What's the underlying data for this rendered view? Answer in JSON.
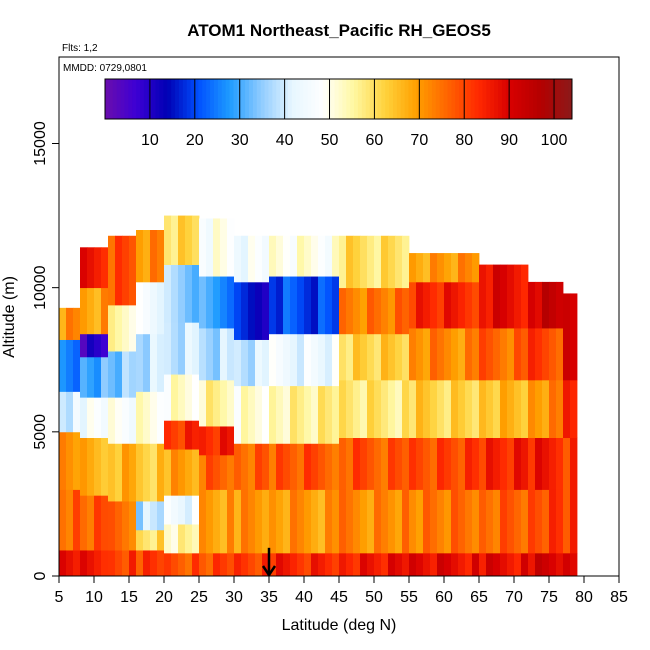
{
  "chart_data": {
    "type": "heatmap",
    "title": "ATOM1 Northeast_Pacific RH_GEOS5",
    "annotations": {
      "flights": "Flts: 1,2",
      "dates": "MMDD: 0729,0801"
    },
    "xlabel": "Latitude (deg N)",
    "ylabel": "Altitude (m)",
    "xlim": [
      5,
      85
    ],
    "ylim": [
      0,
      18000
    ],
    "xticks": [
      5,
      10,
      15,
      20,
      25,
      30,
      35,
      40,
      45,
      50,
      55,
      60,
      65,
      70,
      75,
      80,
      85
    ],
    "yticks": [
      0,
      5000,
      10000,
      15000
    ],
    "colorbar": {
      "ticks": [
        10,
        20,
        30,
        40,
        50,
        60,
        70,
        80,
        90,
        100
      ],
      "range": [
        0,
        104
      ],
      "colors": [
        "#6a0dad",
        "#3d00d4",
        "#0000b4",
        "#0050ff",
        "#1e9bff",
        "#8ecbff",
        "#e6f6ff",
        "#ffffff",
        "#fff7a0",
        "#ffd23c",
        "#ffa000",
        "#ff6400",
        "#ff2800",
        "#d80000",
        "#b40000",
        "#8b1a1a"
      ]
    },
    "marker": {
      "x": 35,
      "y_top": 700,
      "y_bottom": 0
    },
    "heat_columns": [
      {
        "x": [
          5,
          8
        ],
        "top": 9300,
        "bands": [
          [
            0,
            900,
            85
          ],
          [
            900,
            3000,
            76
          ],
          [
            3000,
            5000,
            70
          ],
          [
            5000,
            6400,
            42
          ],
          [
            6400,
            8200,
            25
          ],
          [
            8200,
            9300,
            70
          ]
        ]
      },
      {
        "x": [
          8,
          12
        ],
        "top": 11400,
        "bands": [
          [
            0,
            900,
            86
          ],
          [
            900,
            2800,
            78
          ],
          [
            2800,
            4800,
            68
          ],
          [
            4800,
            6200,
            45
          ],
          [
            6200,
            7600,
            30
          ],
          [
            7600,
            8400,
            8
          ],
          [
            8400,
            10000,
            70
          ],
          [
            10000,
            11400,
            85
          ]
        ]
      },
      {
        "x": [
          12,
          16
        ],
        "top": 11800,
        "bands": [
          [
            0,
            900,
            82
          ],
          [
            900,
            2600,
            74
          ],
          [
            2600,
            4600,
            66
          ],
          [
            4600,
            6200,
            48
          ],
          [
            6200,
            7800,
            35
          ],
          [
            7800,
            9400,
            55
          ],
          [
            9400,
            11800,
            78
          ]
        ]
      },
      {
        "x": [
          16,
          20
        ],
        "top": 12000,
        "bands": [
          [
            0,
            900,
            80
          ],
          [
            900,
            1600,
            60
          ],
          [
            1600,
            2600,
            38
          ],
          [
            2600,
            4600,
            64
          ],
          [
            4600,
            6400,
            50
          ],
          [
            6400,
            8400,
            38
          ],
          [
            8400,
            10200,
            45
          ],
          [
            10200,
            12000,
            72
          ]
        ]
      },
      {
        "x": [
          20,
          25
        ],
        "top": 12500,
        "bands": [
          [
            0,
            800,
            78
          ],
          [
            800,
            1800,
            55
          ],
          [
            1800,
            2800,
            45
          ],
          [
            2800,
            4400,
            68
          ],
          [
            4400,
            5400,
            82
          ],
          [
            5400,
            7000,
            52
          ],
          [
            7000,
            8800,
            40
          ],
          [
            8800,
            10800,
            35
          ],
          [
            10800,
            12500,
            60
          ]
        ]
      },
      {
        "x": [
          25,
          30
        ],
        "top": 12400,
        "bands": [
          [
            0,
            800,
            80
          ],
          [
            800,
            3000,
            70
          ],
          [
            3000,
            4200,
            76
          ],
          [
            4200,
            5200,
            84
          ],
          [
            5200,
            6800,
            56
          ],
          [
            6800,
            8600,
            38
          ],
          [
            8600,
            10400,
            28
          ],
          [
            10400,
            12400,
            48
          ]
        ]
      },
      {
        "x": [
          30,
          35
        ],
        "top": 11800,
        "bands": [
          [
            0,
            800,
            82
          ],
          [
            800,
            3000,
            70
          ],
          [
            3000,
            4600,
            76
          ],
          [
            4600,
            6600,
            52
          ],
          [
            6600,
            8200,
            40
          ],
          [
            8200,
            10200,
            15
          ],
          [
            10200,
            11800,
            45
          ]
        ]
      },
      {
        "x": [
          35,
          45
        ],
        "top": 11800,
        "bands": [
          [
            0,
            800,
            84
          ],
          [
            800,
            3000,
            70
          ],
          [
            3000,
            4600,
            78
          ],
          [
            4600,
            6600,
            56
          ],
          [
            6600,
            8400,
            44
          ],
          [
            8400,
            10400,
            20
          ],
          [
            10400,
            11800,
            50
          ]
        ]
      },
      {
        "x": [
          45,
          55
        ],
        "top": 11800,
        "bands": [
          [
            0,
            800,
            86
          ],
          [
            800,
            3000,
            72
          ],
          [
            3000,
            4800,
            78
          ],
          [
            4800,
            6800,
            58
          ],
          [
            6800,
            8400,
            62
          ],
          [
            8400,
            10000,
            74
          ],
          [
            10000,
            11800,
            60
          ]
        ]
      },
      {
        "x": [
          55,
          65
        ],
        "top": 11200,
        "bands": [
          [
            0,
            800,
            88
          ],
          [
            800,
            3000,
            74
          ],
          [
            3000,
            4800,
            80
          ],
          [
            4800,
            6800,
            62
          ],
          [
            6800,
            8600,
            72
          ],
          [
            8600,
            10200,
            84
          ],
          [
            10200,
            11200,
            70
          ]
        ]
      },
      {
        "x": [
          65,
          72
        ],
        "top": 10800,
        "bands": [
          [
            0,
            800,
            88
          ],
          [
            800,
            3000,
            76
          ],
          [
            3000,
            4800,
            84
          ],
          [
            4800,
            6800,
            66
          ],
          [
            6800,
            8600,
            76
          ],
          [
            8600,
            10800,
            88
          ]
        ]
      },
      {
        "x": [
          72,
          77
        ],
        "top": 10200,
        "bands": [
          [
            0,
            800,
            90
          ],
          [
            800,
            3000,
            80
          ],
          [
            3000,
            4800,
            86
          ],
          [
            4800,
            6800,
            72
          ],
          [
            6800,
            8600,
            80
          ],
          [
            8600,
            10200,
            92
          ]
        ]
      },
      {
        "x": [
          77,
          79
        ],
        "top": 9800,
        "bands": [
          [
            0,
            800,
            90
          ],
          [
            800,
            4800,
            82
          ],
          [
            4800,
            6800,
            86
          ],
          [
            6800,
            9800,
            88
          ]
        ]
      }
    ]
  }
}
